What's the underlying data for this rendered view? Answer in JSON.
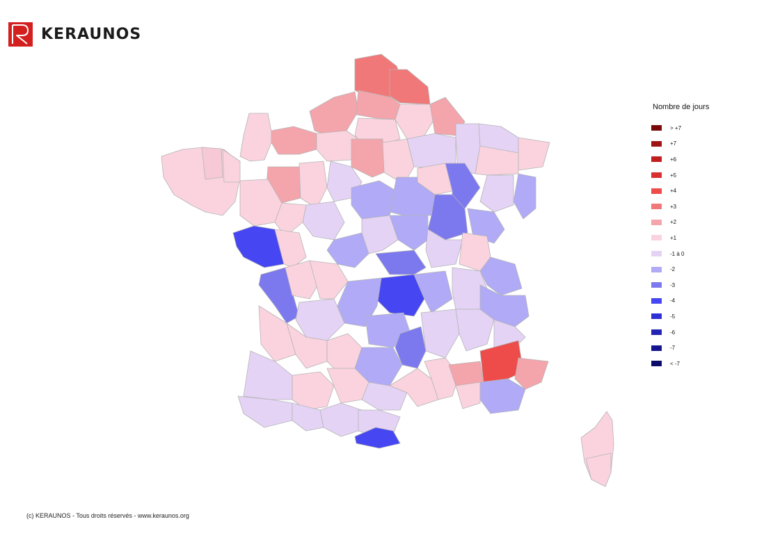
{
  "brand": {
    "name": "KERAUNOS"
  },
  "legend": {
    "title": "Nombre de jours",
    "items": [
      {
        "label": "> +7",
        "color": "#7a0a0a"
      },
      {
        "label": "+7",
        "color": "#9e1414"
      },
      {
        "label": "+6",
        "color": "#c01e1e"
      },
      {
        "label": "+5",
        "color": "#d83030"
      },
      {
        "label": "+4",
        "color": "#ee4b4b"
      },
      {
        "label": "+3",
        "color": "#f07878"
      },
      {
        "label": "+2",
        "color": "#f4a4ab"
      },
      {
        "label": "+1",
        "color": "#fad3df"
      },
      {
        "label": "-1 à 0",
        "color": "#e4d3f5"
      },
      {
        "label": "-2",
        "color": "#b0aaf7"
      },
      {
        "label": "-3",
        "color": "#7c79ef"
      },
      {
        "label": "-4",
        "color": "#4646f2"
      },
      {
        "label": "-5",
        "color": "#2f2fd6"
      },
      {
        "label": "-6",
        "color": "#2424b4"
      },
      {
        "label": "-7",
        "color": "#15158f"
      },
      {
        "label": "< -7",
        "color": "#0b0b6a"
      }
    ]
  },
  "footer": {
    "text": "(c) KERAUNOS - Tous droits réservés - www.keraunos.org"
  }
}
